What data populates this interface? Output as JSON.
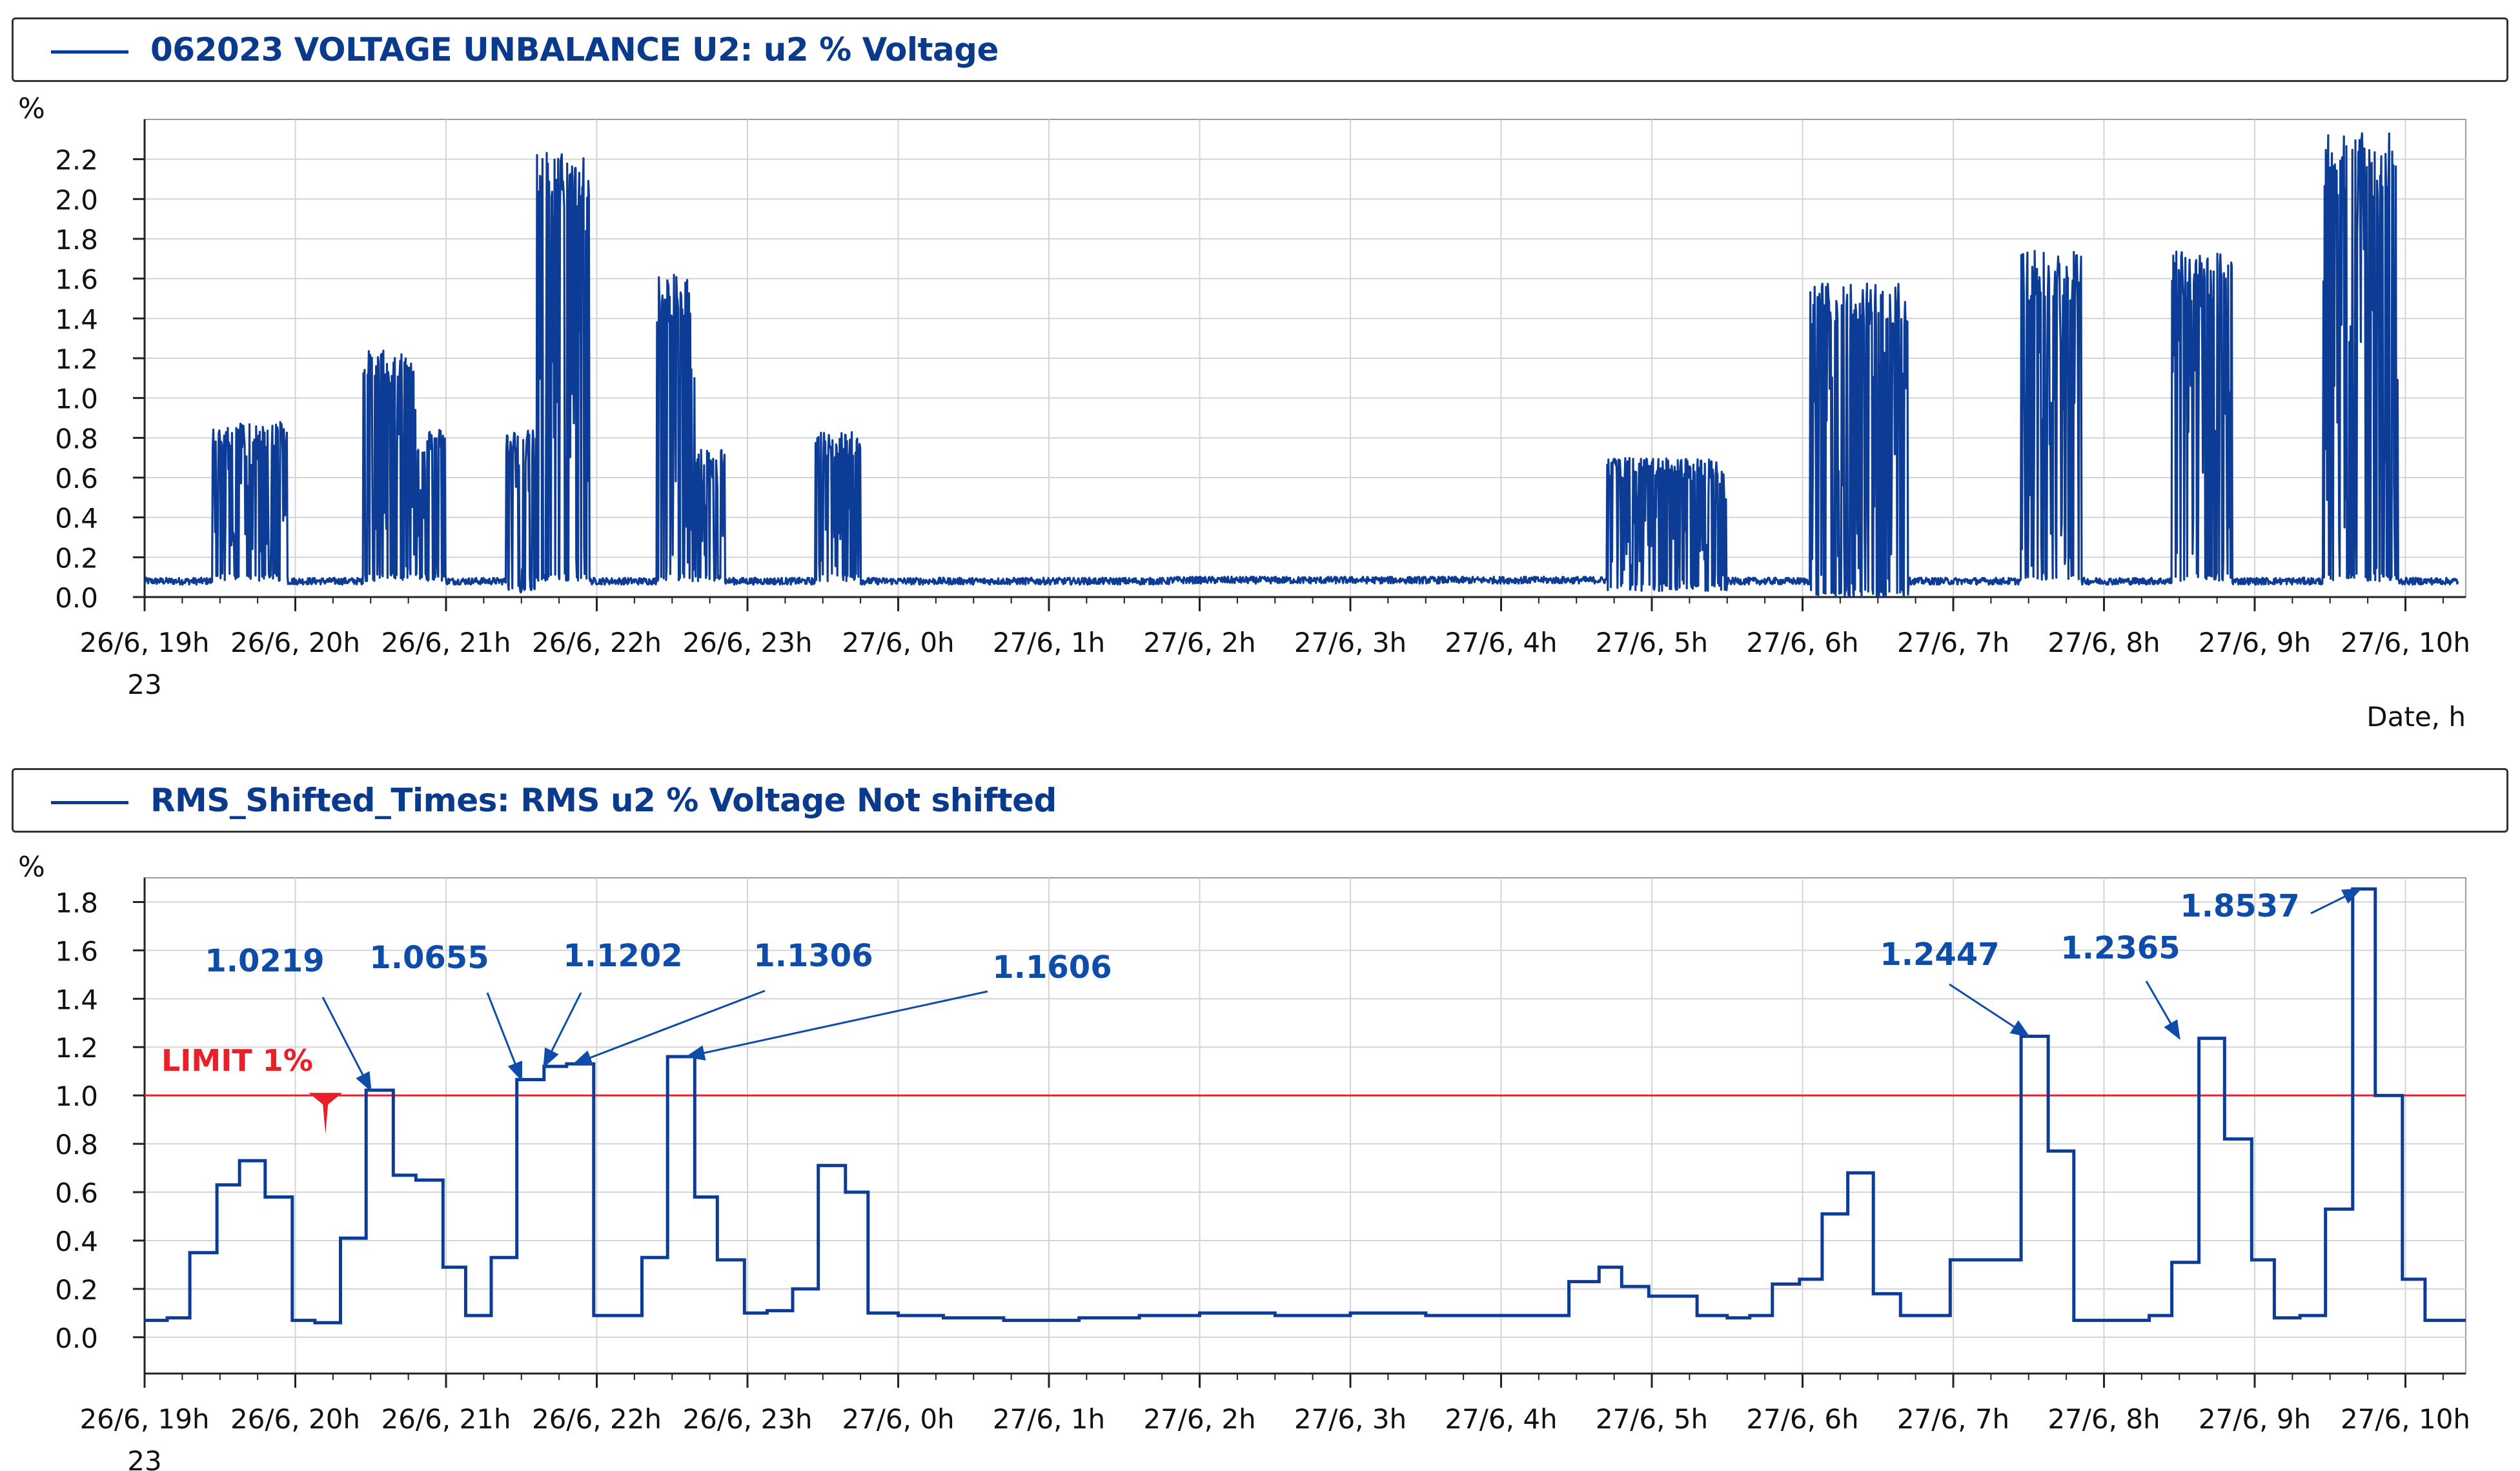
{
  "colors": {
    "series": "#0c3c96",
    "title": "#0a3a8c",
    "limit": "#e8202a",
    "grid": "#d4d4d4",
    "axis": "#222222",
    "annot": "#0d4ca8"
  },
  "x_tick_labels": [
    "26/6, 19h",
    "26/6, 20h",
    "26/6, 21h",
    "26/6, 22h",
    "26/6, 23h",
    "27/6, 0h",
    "27/6, 1h",
    "27/6, 2h",
    "27/6, 3h",
    "27/6, 4h",
    "27/6, 5h",
    "27/6, 6h",
    "27/6, 7h",
    "27/6, 8h",
    "27/6, 9h",
    "27/6, 10h"
  ],
  "year_label": "23",
  "chart_data": [
    {
      "type": "line",
      "title": "062023 VOLTAGE UNBALANCE U2: u2 % Voltage",
      "legend": "top-left",
      "grid": true,
      "xlabel": "Date,  h",
      "ylabel": "%",
      "ylim": [
        0,
        2.4
      ],
      "yticks": [
        0.0,
        0.2,
        0.4,
        0.6,
        0.8,
        1.0,
        1.2,
        1.4,
        1.6,
        1.8,
        2.0,
        2.2
      ],
      "ytick_labels": [
        "0.0",
        "0.2",
        "0.4",
        "0.6",
        "0.8",
        "1.0",
        "1.2",
        "1.4",
        "1.6",
        "1.8",
        "2.0",
        "2.2"
      ],
      "x_unit": "hours from 26/6 19h",
      "xlim": [
        0,
        15.4
      ],
      "series": [
        {
          "name": "062023 VOLTAGE UNBALANCE U2: u2 % Voltage",
          "style": "noisy-bursts",
          "base_level": 0.08,
          "bursts": [
            {
              "start": 0.45,
              "end": 0.95,
              "high": 0.88,
              "low": 0.08
            },
            {
              "start": 1.45,
              "end": 1.8,
              "high": 1.24,
              "low": 0.08
            },
            {
              "start": 1.8,
              "end": 2.0,
              "high": 0.85,
              "low": 0.08
            },
            {
              "start": 2.4,
              "end": 2.6,
              "high": 0.84,
              "low": 0.02
            },
            {
              "start": 2.6,
              "end": 2.95,
              "high": 2.25,
              "low": 0.08
            },
            {
              "start": 3.4,
              "end": 3.65,
              "high": 1.62,
              "low": 0.08
            },
            {
              "start": 3.65,
              "end": 3.85,
              "high": 0.75,
              "low": 0.08
            },
            {
              "start": 4.45,
              "end": 4.75,
              "high": 0.83,
              "low": 0.08
            },
            {
              "start": 9.7,
              "end": 10.5,
              "high": 0.7,
              "low": 0.03
            },
            {
              "start": 11.05,
              "end": 11.7,
              "high": 1.58,
              "low": 0.0
            },
            {
              "start": 12.45,
              "end": 12.85,
              "high": 1.74,
              "low": 0.08
            },
            {
              "start": 13.45,
              "end": 13.85,
              "high": 1.74,
              "low": 0.08
            },
            {
              "start": 14.45,
              "end": 14.95,
              "high": 2.33,
              "low": 0.08
            }
          ]
        }
      ]
    },
    {
      "type": "line",
      "title": "RMS_Shifted_Times: RMS u2 % Voltage Not shifted",
      "legend": "top-left",
      "grid": true,
      "ylabel": "%",
      "ylim": [
        -0.15,
        1.9
      ],
      "yticks": [
        0.0,
        0.2,
        0.4,
        0.6,
        0.8,
        1.0,
        1.2,
        1.4,
        1.6,
        1.8
      ],
      "ytick_labels": [
        "0.0",
        "0.2",
        "0.4",
        "0.6",
        "0.8",
        "1.0",
        "1.2",
        "1.4",
        "1.6",
        "1.8"
      ],
      "x_unit": "hours from 26/6 19h",
      "xlim": [
        0,
        15.4
      ],
      "limit": {
        "value": 1.0,
        "label": "LIMIT 1%"
      },
      "series": [
        {
          "name": "RMS_Shifted_Times: RMS u2 % Voltage Not shifted",
          "style": "step",
          "x": [
            0.0,
            0.15,
            0.3,
            0.48,
            0.63,
            0.8,
            0.98,
            1.13,
            1.3,
            1.47,
            1.65,
            1.8,
            1.98,
            2.13,
            2.3,
            2.47,
            2.65,
            2.8,
            2.98,
            3.13,
            3.3,
            3.47,
            3.65,
            3.8,
            3.98,
            4.13,
            4.3,
            4.47,
            4.65,
            4.8,
            5.0,
            5.3,
            5.7,
            6.2,
            6.6,
            7.0,
            7.5,
            8.0,
            8.5,
            9.0,
            9.45,
            9.65,
            9.8,
            9.98,
            10.3,
            10.5,
            10.65,
            10.8,
            10.98,
            11.13,
            11.3,
            11.47,
            11.65,
            11.8,
            11.98,
            12.45,
            12.63,
            12.8,
            12.98,
            13.3,
            13.45,
            13.63,
            13.8,
            13.98,
            14.13,
            14.3,
            14.47,
            14.65,
            14.8,
            14.98,
            15.13,
            15.4
          ],
          "y": [
            0.07,
            0.08,
            0.35,
            0.63,
            0.73,
            0.58,
            0.07,
            0.06,
            0.41,
            1.0219,
            0.67,
            0.65,
            0.29,
            0.09,
            0.33,
            1.0655,
            1.1202,
            1.1306,
            0.09,
            0.09,
            0.33,
            1.1606,
            0.58,
            0.32,
            0.1,
            0.11,
            0.2,
            0.71,
            0.6,
            0.1,
            0.09,
            0.08,
            0.07,
            0.08,
            0.09,
            0.1,
            0.09,
            0.1,
            0.09,
            0.09,
            0.23,
            0.29,
            0.21,
            0.17,
            0.09,
            0.08,
            0.09,
            0.22,
            0.24,
            0.51,
            0.68,
            0.18,
            0.09,
            0.09,
            0.32,
            1.2447,
            0.77,
            0.07,
            0.07,
            0.09,
            0.31,
            1.2365,
            0.82,
            0.32,
            0.08,
            0.09,
            0.53,
            1.8537,
            1.0,
            0.24,
            0.07,
            0.07
          ]
        }
      ],
      "annotations": [
        {
          "text": "1.0219",
          "x": 1.5,
          "y": 1.0219
        },
        {
          "text": "1.0655",
          "x": 2.5,
          "y": 1.0655
        },
        {
          "text": "1.1202",
          "x": 2.65,
          "y": 1.1202
        },
        {
          "text": "1.1306",
          "x": 2.85,
          "y": 1.1306
        },
        {
          "text": "1.1606",
          "x": 3.6,
          "y": 1.1606
        },
        {
          "text": "1.2447",
          "x": 12.5,
          "y": 1.2447
        },
        {
          "text": "1.2365",
          "x": 13.5,
          "y": 1.2365
        },
        {
          "text": "1.8537",
          "x": 14.7,
          "y": 1.8537
        }
      ]
    }
  ]
}
